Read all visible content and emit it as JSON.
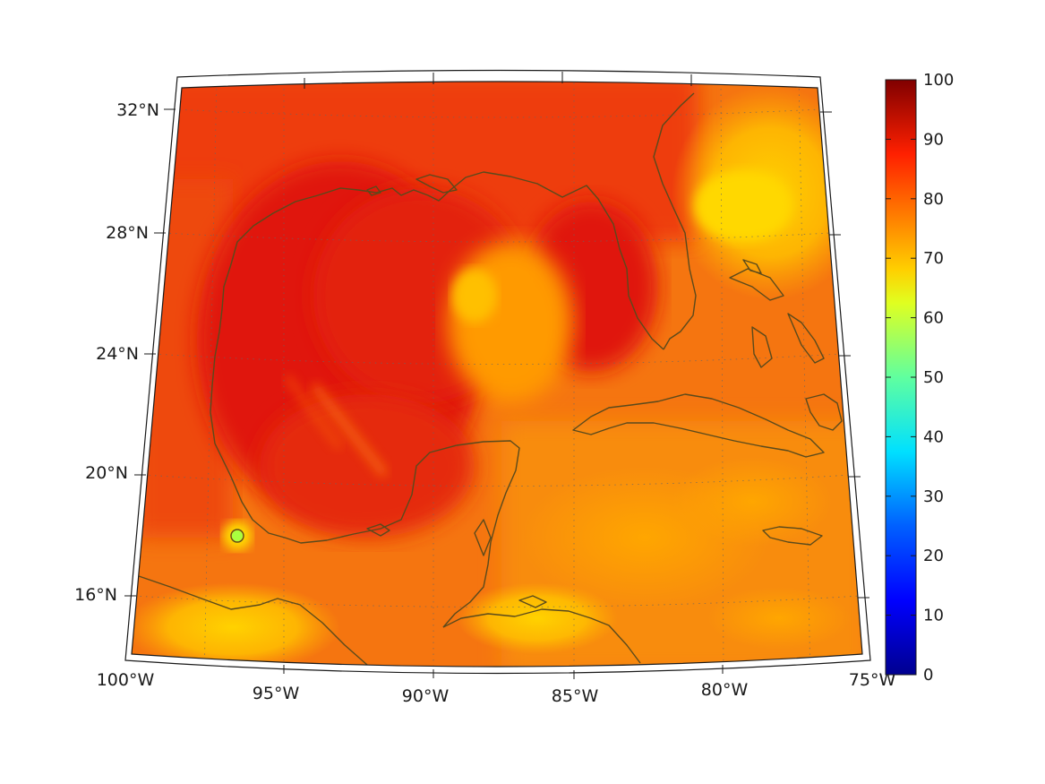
{
  "map": {
    "projection": "conic",
    "lon_range": [
      -100,
      -75
    ],
    "lat_range": [
      14,
      33
    ],
    "latitude_labels": [
      "16°N",
      "20°N",
      "24°N",
      "28°N",
      "32°N"
    ],
    "longitude_labels": [
      "100°W",
      "95°W",
      "90°W",
      "85°W",
      "80°W",
      "75°W"
    ],
    "gridlines": "dotted",
    "coastline_color": "#5a4a1c",
    "colormap": "jet",
    "field_colors": {
      "gulf_core": "#e31a0e",
      "warm_land": "#f04a10",
      "mid": "#f77a0c",
      "cool_patch": "#ffc800",
      "cold_spot": "#a8ff40"
    }
  },
  "colorbar": {
    "min": 0,
    "max": 100,
    "ticks": [
      "0",
      "10",
      "20",
      "30",
      "40",
      "50",
      "60",
      "70",
      "80",
      "90",
      "100"
    ],
    "colors": [
      "#00008f",
      "#0000ff",
      "#0080ff",
      "#00ffff",
      "#80ff80",
      "#ffff00",
      "#ff8000",
      "#ff0000",
      "#800000"
    ]
  }
}
